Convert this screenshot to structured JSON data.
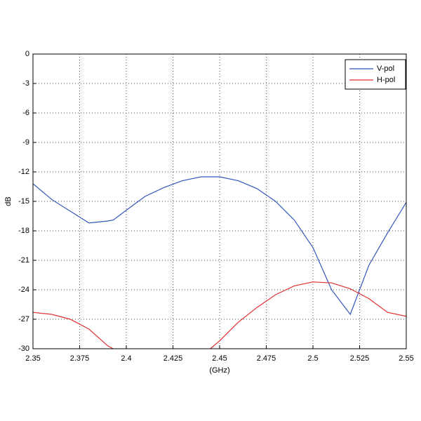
{
  "chart_data": {
    "type": "line",
    "xlabel": "(GHz)",
    "ylabel": "dB",
    "x": [
      2.35,
      2.36,
      2.37,
      2.38,
      2.39,
      2.393,
      2.4,
      2.41,
      2.42,
      2.43,
      2.44,
      2.445,
      2.45,
      2.46,
      2.47,
      2.48,
      2.49,
      2.5,
      2.51,
      2.52,
      2.53,
      2.54,
      2.55
    ],
    "series": [
      {
        "name": "V-pol",
        "color": "#3355bb",
        "values": [
          -13.2,
          -14.8,
          -16.0,
          -17.2,
          -17.0,
          -16.9,
          -15.9,
          -14.5,
          -13.6,
          -12.9,
          -12.5,
          -12.5,
          -12.5,
          -12.9,
          -13.7,
          -15.0,
          -16.9,
          -19.7,
          -24.0,
          -26.5,
          -21.5,
          -18.2,
          -15.1
        ]
      },
      {
        "name": "H-pol",
        "color": "#e03030",
        "values": [
          -26.3,
          -26.5,
          -27.0,
          -28.0,
          -29.7,
          -30,
          null,
          null,
          null,
          null,
          null,
          -30,
          -29.2,
          -27.3,
          -25.8,
          -24.5,
          -23.6,
          -23.2,
          -23.3,
          -23.9,
          -24.9,
          -26.3,
          -26.7
        ]
      }
    ],
    "xlim": [
      2.35,
      2.55
    ],
    "xticks": [
      2.35,
      2.375,
      2.4,
      2.425,
      2.45,
      2.475,
      2.5,
      2.525,
      2.55
    ],
    "ylim": [
      -30,
      0
    ],
    "yticks": [
      0,
      -3,
      -6,
      -9,
      -12,
      -15,
      -18,
      -21,
      -24,
      -27,
      -30
    ],
    "grid": true,
    "legend": "northeast"
  }
}
